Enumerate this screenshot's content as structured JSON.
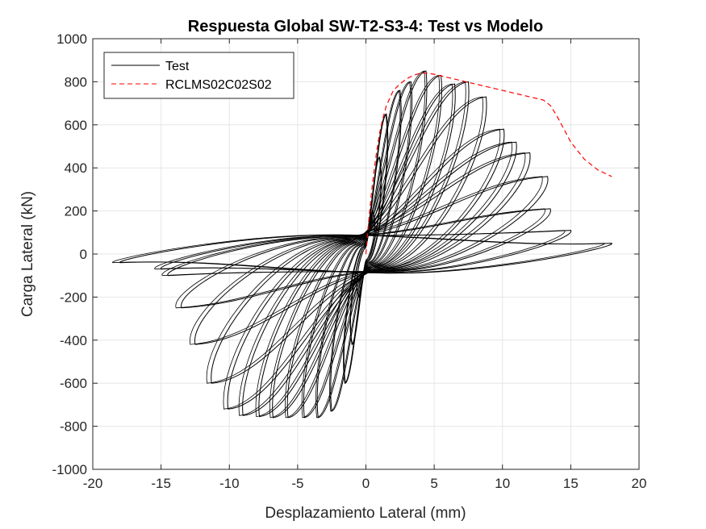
{
  "chart_data": {
    "type": "line",
    "title": "Respuesta Global SW-T2-S3-4: Test vs Modelo",
    "xlabel": "Desplazamiento Lateral (mm)",
    "ylabel": "Carga Lateral (kN)",
    "xlim": [
      -20,
      20
    ],
    "ylim": [
      -1000,
      1000
    ],
    "xticks": [
      "-20",
      "-15",
      "-10",
      "-5",
      "0",
      "5",
      "10",
      "15",
      "20"
    ],
    "yticks": [
      "1000",
      "800",
      "600",
      "400",
      "200",
      "0",
      "-200",
      "-400",
      "-600",
      "-800",
      "-1000"
    ],
    "grid": true,
    "legend_position": "top-left",
    "series": [
      {
        "name": "Test",
        "color": "#000000",
        "style": "solid",
        "cycles": [
          {
            "pos_d": 0.5,
            "pos_f": 200,
            "neg_d": -0.5,
            "neg_f": -200
          },
          {
            "pos_d": 1.0,
            "pos_f": 450,
            "neg_d": -1.0,
            "neg_f": -420
          },
          {
            "pos_d": 1.5,
            "pos_f": 650,
            "neg_d": -1.5,
            "neg_f": -600
          },
          {
            "pos_d": 2.5,
            "pos_f": 760,
            "neg_d": -2.5,
            "neg_f": -730
          },
          {
            "pos_d": 3.3,
            "pos_f": 800,
            "neg_d": -3.5,
            "neg_f": -760
          },
          {
            "pos_d": 4.4,
            "pos_f": 850,
            "neg_d": -4.5,
            "neg_f": -760
          },
          {
            "pos_d": 5.5,
            "pos_f": 830,
            "neg_d": -5.7,
            "neg_f": -760
          },
          {
            "pos_d": 6.5,
            "pos_f": 790,
            "neg_d": -6.8,
            "neg_f": -760
          },
          {
            "pos_d": 7.5,
            "pos_f": 800,
            "neg_d": -7.8,
            "neg_f": -755
          },
          {
            "pos_d": 8.8,
            "pos_f": 730,
            "neg_d": -9.0,
            "neg_f": -750
          },
          {
            "pos_d": 10.1,
            "pos_f": 580,
            "neg_d": -10.1,
            "neg_f": -720
          },
          {
            "pos_d": 11.0,
            "pos_f": 520,
            "neg_d": -11.3,
            "neg_f": -600
          },
          {
            "pos_d": 12.0,
            "pos_f": 470,
            "neg_d": -12.5,
            "neg_f": -420
          },
          {
            "pos_d": 13.3,
            "pos_f": 360,
            "neg_d": -13.5,
            "neg_f": -250
          },
          {
            "pos_d": 13.5,
            "pos_f": 210,
            "neg_d": -14.5,
            "neg_f": -100
          },
          {
            "pos_d": 15.0,
            "pos_f": 110,
            "neg_d": -15.0,
            "neg_f": -70
          },
          {
            "pos_d": 18.0,
            "pos_f": 50,
            "neg_d": -18.0,
            "neg_f": -40
          }
        ]
      },
      {
        "name": "RCLMS02C02S02",
        "color": "#ff0000",
        "style": "dashed",
        "x": [
          0,
          0.2,
          0.4,
          0.6,
          0.8,
          1.0,
          1.2,
          1.5,
          1.8,
          2.0,
          2.5,
          3.0,
          3.5,
          4.0,
          4.5,
          5.0,
          6.0,
          7.0,
          8.0,
          9.0,
          10.0,
          11.0,
          12.0,
          13.0,
          13.5,
          14.0,
          14.5,
          15.0,
          15.5,
          16.0,
          17.0,
          18.0
        ],
        "y": [
          0,
          150,
          280,
          390,
          480,
          560,
          620,
          690,
          730,
          760,
          790,
          815,
          830,
          840,
          840,
          835,
          820,
          805,
          790,
          775,
          760,
          745,
          730,
          715,
          690,
          640,
          580,
          520,
          480,
          440,
          390,
          360
        ]
      }
    ]
  }
}
